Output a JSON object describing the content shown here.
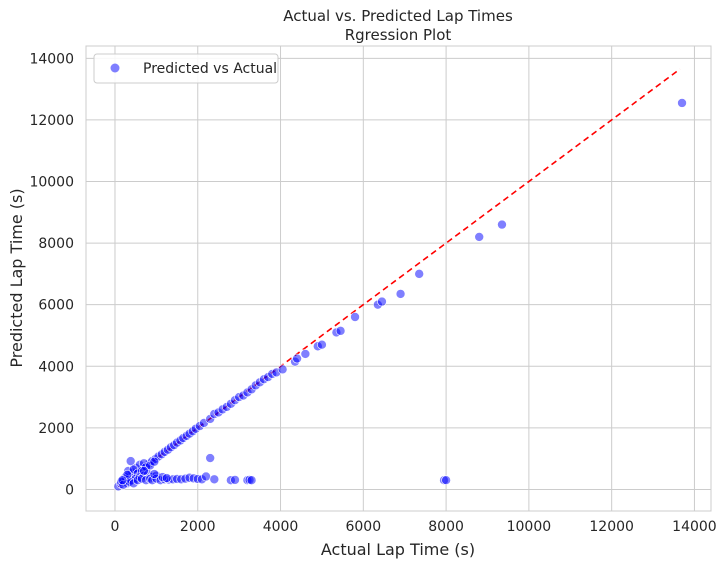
{
  "chart_data": {
    "type": "scatter",
    "title": "Actual vs. Predicted Lap Times",
    "subtitle": "Rgression Plot",
    "xlabel": "Actual Lap Time (s)",
    "ylabel": "Predicted Lap Time (s)",
    "xlim": [
      -700,
      14400
    ],
    "ylim": [
      -700,
      14400
    ],
    "xticks": [
      0,
      2000,
      4000,
      6000,
      8000,
      10000,
      12000,
      14000
    ],
    "yticks": [
      0,
      2000,
      4000,
      6000,
      8000,
      10000,
      12000,
      14000
    ],
    "xtick_labels": [
      "0",
      "2000",
      "4000",
      "6000",
      "8000",
      "10000",
      "12000",
      "14000"
    ],
    "ytick_labels": [
      "0",
      "2000",
      "4000",
      "6000",
      "8000",
      "10000",
      "12000",
      "14000"
    ],
    "grid": true,
    "legend_position": "top-left",
    "point_color": "#0000ff",
    "line_color": "#ff0000",
    "reference_line": {
      "x": [
        80,
        13650
      ],
      "y": [
        80,
        13650
      ]
    },
    "series": [
      {
        "name": "Predicted vs Actual",
        "points": [
          [
            80,
            100
          ],
          [
            150,
            180
          ],
          [
            220,
            250
          ],
          [
            300,
            320
          ],
          [
            380,
            390
          ],
          [
            450,
            460
          ],
          [
            520,
            540
          ],
          [
            600,
            610
          ],
          [
            680,
            690
          ],
          [
            750,
            760
          ],
          [
            830,
            840
          ],
          [
            900,
            920
          ],
          [
            980,
            990
          ],
          [
            1050,
            1070
          ],
          [
            1130,
            1140
          ],
          [
            1200,
            1220
          ],
          [
            1280,
            1290
          ],
          [
            1350,
            1370
          ],
          [
            1430,
            1440
          ],
          [
            1500,
            1520
          ],
          [
            1580,
            1590
          ],
          [
            1650,
            1670
          ],
          [
            1730,
            1740
          ],
          [
            1800,
            1810
          ],
          [
            1880,
            1890
          ],
          [
            1950,
            1970
          ],
          [
            2050,
            2060
          ],
          [
            2150,
            2160
          ],
          [
            2300,
            2290
          ],
          [
            2400,
            2450
          ],
          [
            2500,
            2500
          ],
          [
            2600,
            2600
          ],
          [
            2700,
            2680
          ],
          [
            2800,
            2780
          ],
          [
            2900,
            2900
          ],
          [
            3000,
            3000
          ],
          [
            3100,
            3050
          ],
          [
            3200,
            3150
          ],
          [
            3300,
            3250
          ],
          [
            3400,
            3380
          ],
          [
            3500,
            3480
          ],
          [
            3600,
            3580
          ],
          [
            3700,
            3650
          ],
          [
            3800,
            3750
          ],
          [
            3900,
            3800
          ],
          [
            4050,
            3900
          ],
          [
            4350,
            4150
          ],
          [
            4400,
            4250
          ],
          [
            4600,
            4400
          ],
          [
            4900,
            4650
          ],
          [
            5000,
            4700
          ],
          [
            5350,
            5100
          ],
          [
            5450,
            5150
          ],
          [
            5800,
            5600
          ],
          [
            6350,
            6000
          ],
          [
            6450,
            6100
          ],
          [
            6900,
            6350
          ],
          [
            7350,
            7000
          ],
          [
            8800,
            8200
          ],
          [
            9350,
            8600
          ],
          [
            13700,
            12550
          ],
          [
            200,
            280
          ],
          [
            280,
            360
          ],
          [
            350,
            480
          ],
          [
            420,
            550
          ],
          [
            500,
            700
          ],
          [
            380,
            920
          ],
          [
            600,
            800
          ],
          [
            700,
            850
          ],
          [
            250,
            400
          ],
          [
            320,
            600
          ],
          [
            450,
            650
          ],
          [
            550,
            520
          ],
          [
            650,
            600
          ],
          [
            750,
            720
          ],
          [
            850,
            780
          ],
          [
            950,
            900
          ],
          [
            150,
            250
          ],
          [
            300,
            200
          ],
          [
            400,
            300
          ],
          [
            500,
            350
          ],
          [
            600,
            400
          ],
          [
            700,
            450
          ],
          [
            800,
            500
          ],
          [
            900,
            400
          ],
          [
            1000,
            450
          ],
          [
            200,
            150
          ],
          [
            350,
            250
          ],
          [
            450,
            200
          ],
          [
            550,
            300
          ],
          [
            650,
            350
          ],
          [
            750,
            300
          ],
          [
            850,
            350
          ],
          [
            900,
            300
          ],
          [
            1000,
            350
          ],
          [
            1100,
            300
          ],
          [
            1200,
            330
          ],
          [
            1300,
            320
          ],
          [
            1400,
            330
          ],
          [
            1500,
            340
          ],
          [
            1600,
            330
          ],
          [
            1700,
            350
          ],
          [
            1800,
            380
          ],
          [
            1900,
            360
          ],
          [
            2000,
            340
          ],
          [
            2100,
            330
          ],
          [
            2200,
            420
          ],
          [
            2300,
            1020
          ],
          [
            2400,
            330
          ],
          [
            2800,
            300
          ],
          [
            2900,
            310
          ],
          [
            3200,
            300
          ],
          [
            3250,
            310
          ],
          [
            3300,
            300
          ],
          [
            7950,
            300
          ],
          [
            8000,
            300
          ],
          [
            1150,
            400
          ],
          [
            1250,
            370
          ],
          [
            950,
            500
          ],
          [
            700,
            600
          ],
          [
            300,
            480
          ],
          [
            180,
            300
          ]
        ]
      }
    ]
  }
}
